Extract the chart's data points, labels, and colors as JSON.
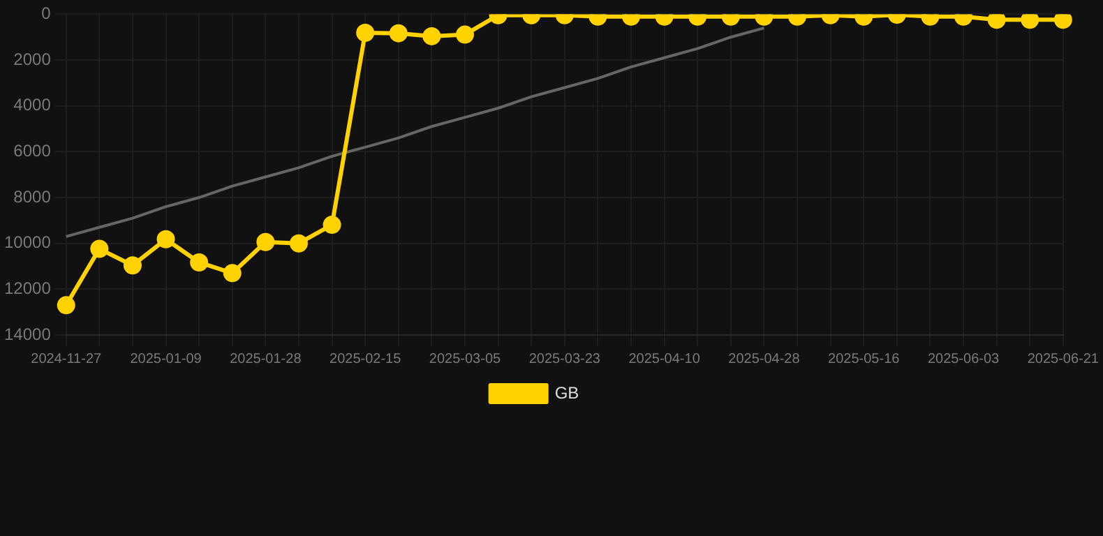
{
  "chart_data": {
    "type": "line",
    "categories": [
      "2024-11-27",
      null,
      null,
      "2025-01-09",
      null,
      null,
      "2025-01-28",
      null,
      null,
      "2025-02-15",
      null,
      null,
      "2025-03-05",
      null,
      null,
      "2025-03-23",
      null,
      null,
      "2025-04-10",
      null,
      null,
      "2025-04-28",
      null,
      null,
      "2025-05-16",
      null,
      null,
      "2025-06-03",
      null,
      null,
      "2025-06-21"
    ],
    "series": [
      {
        "name": "GB",
        "color": "#ffd200",
        "marker": "circle",
        "values": [
          12700,
          10240,
          10960,
          9820,
          10830,
          11300,
          9940,
          10000,
          9190,
          810,
          830,
          960,
          890,
          40,
          40,
          40,
          100,
          100,
          100,
          100,
          100,
          100,
          100,
          40,
          100,
          20,
          100,
          100,
          240,
          240,
          240
        ]
      },
      {
        "type": "line",
        "color": "#666666",
        "marker": "none",
        "values": [
          9700,
          9300,
          8900,
          8400,
          8000,
          7500,
          7100,
          6700,
          6200,
          5800,
          5400,
          4900,
          4500,
          4100,
          3600,
          3200,
          2800,
          2300,
          1900,
          1500,
          1000,
          600,
          null,
          null,
          null,
          null,
          null,
          null,
          null,
          null,
          null
        ]
      }
    ],
    "ylim": [
      14000,
      0
    ],
    "yticks": [
      0,
      2000,
      4000,
      6000,
      8000,
      10000,
      12000,
      14000
    ],
    "grid": true,
    "legend": "bottom",
    "line_style": "solid"
  }
}
